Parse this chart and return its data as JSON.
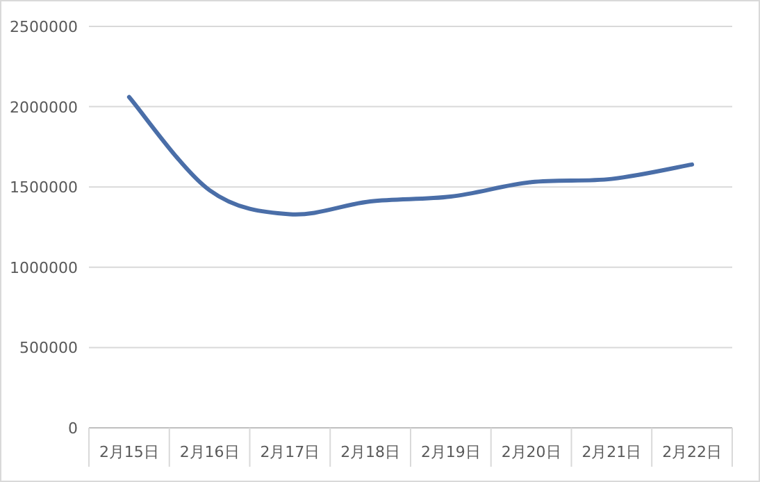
{
  "chart_data": {
    "type": "line",
    "categories": [
      "2月15日",
      "2月16日",
      "2月17日",
      "2月18日",
      "2月19日",
      "2月20日",
      "2月21日",
      "2月22日"
    ],
    "values": [
      2060000,
      1480000,
      1330000,
      1410000,
      1440000,
      1530000,
      1550000,
      1640000
    ],
    "color": "#4a6ea8",
    "ylim": [
      0,
      2500000
    ],
    "yticks": [
      0,
      500000,
      1000000,
      1500000,
      2000000,
      2500000
    ],
    "grid": "y",
    "marker": "none",
    "line_style": "solid"
  }
}
